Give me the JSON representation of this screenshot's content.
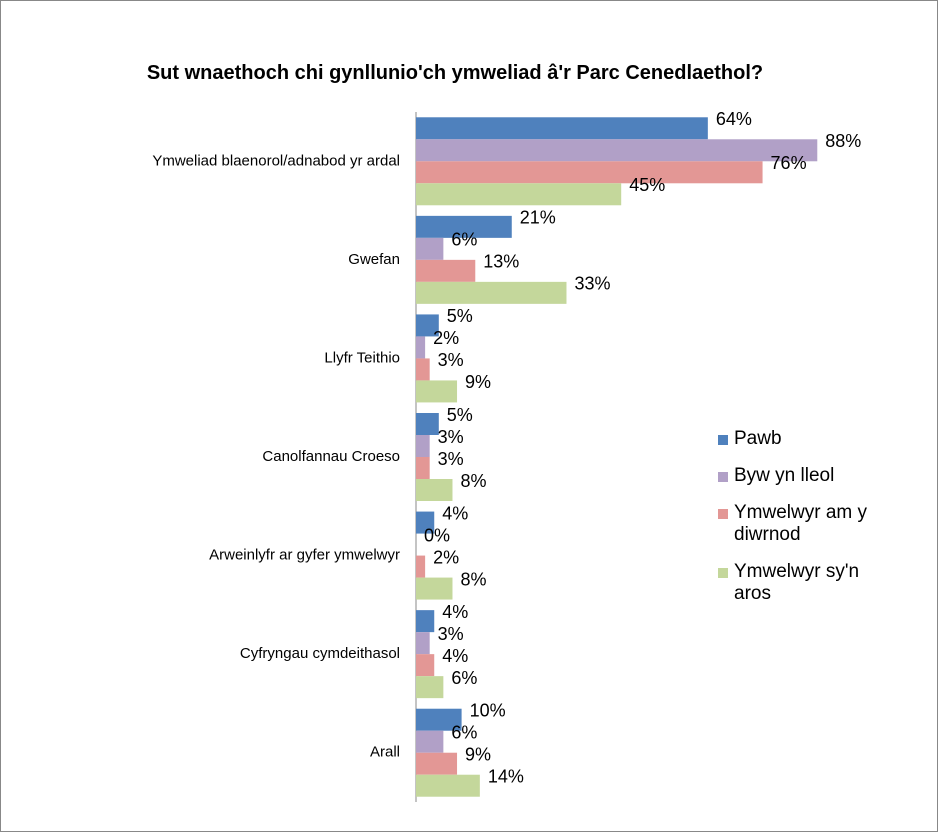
{
  "chart_data": {
    "type": "bar",
    "orientation": "horizontal",
    "title": "Sut wnaethoch chi gynllunio'ch ymweliad â'r Parc Cenedlaethol?",
    "categories": [
      "Ymweliad blaenorol/adnabod yr ardal",
      "Gwefan",
      "Llyfr Teithio",
      "Canolfannau Croeso",
      "Arweinlyfr ar gyfer ymwelwyr",
      "Cyfryngau cymdeithasol",
      "Arall"
    ],
    "xlim": [
      0,
      100
    ],
    "legend": "right",
    "series": [
      {
        "name": "Pawb",
        "color": "#4f81bd",
        "values": [
          64,
          21,
          5,
          5,
          4,
          4,
          10
        ],
        "value_labels": [
          "64%",
          "21%",
          "5%",
          "5%",
          "4%",
          "4%",
          "10%"
        ]
      },
      {
        "name": "Byw yn lleol",
        "color": "#b1a0c7",
        "values": [
          88,
          6,
          2,
          3,
          0,
          3,
          6
        ],
        "value_labels": [
          "88%",
          "6%",
          "2%",
          "3%",
          "0%",
          "3%",
          "6%"
        ]
      },
      {
        "name": "Ymwelwyr am y diwrnod",
        "color": "#e39795",
        "values": [
          76,
          13,
          3,
          3,
          2,
          4,
          9
        ],
        "value_labels": [
          "76%",
          "13%",
          "3%",
          "3%",
          "2%",
          "4%",
          "9%"
        ]
      },
      {
        "name": "Ymwelwyr sy'n aros",
        "color": "#c4d79b",
        "values": [
          45,
          33,
          9,
          8,
          8,
          6,
          14
        ],
        "value_labels": [
          "45%",
          "33%",
          "9%",
          "8%",
          "8%",
          "6%",
          "14%"
        ]
      }
    ]
  }
}
